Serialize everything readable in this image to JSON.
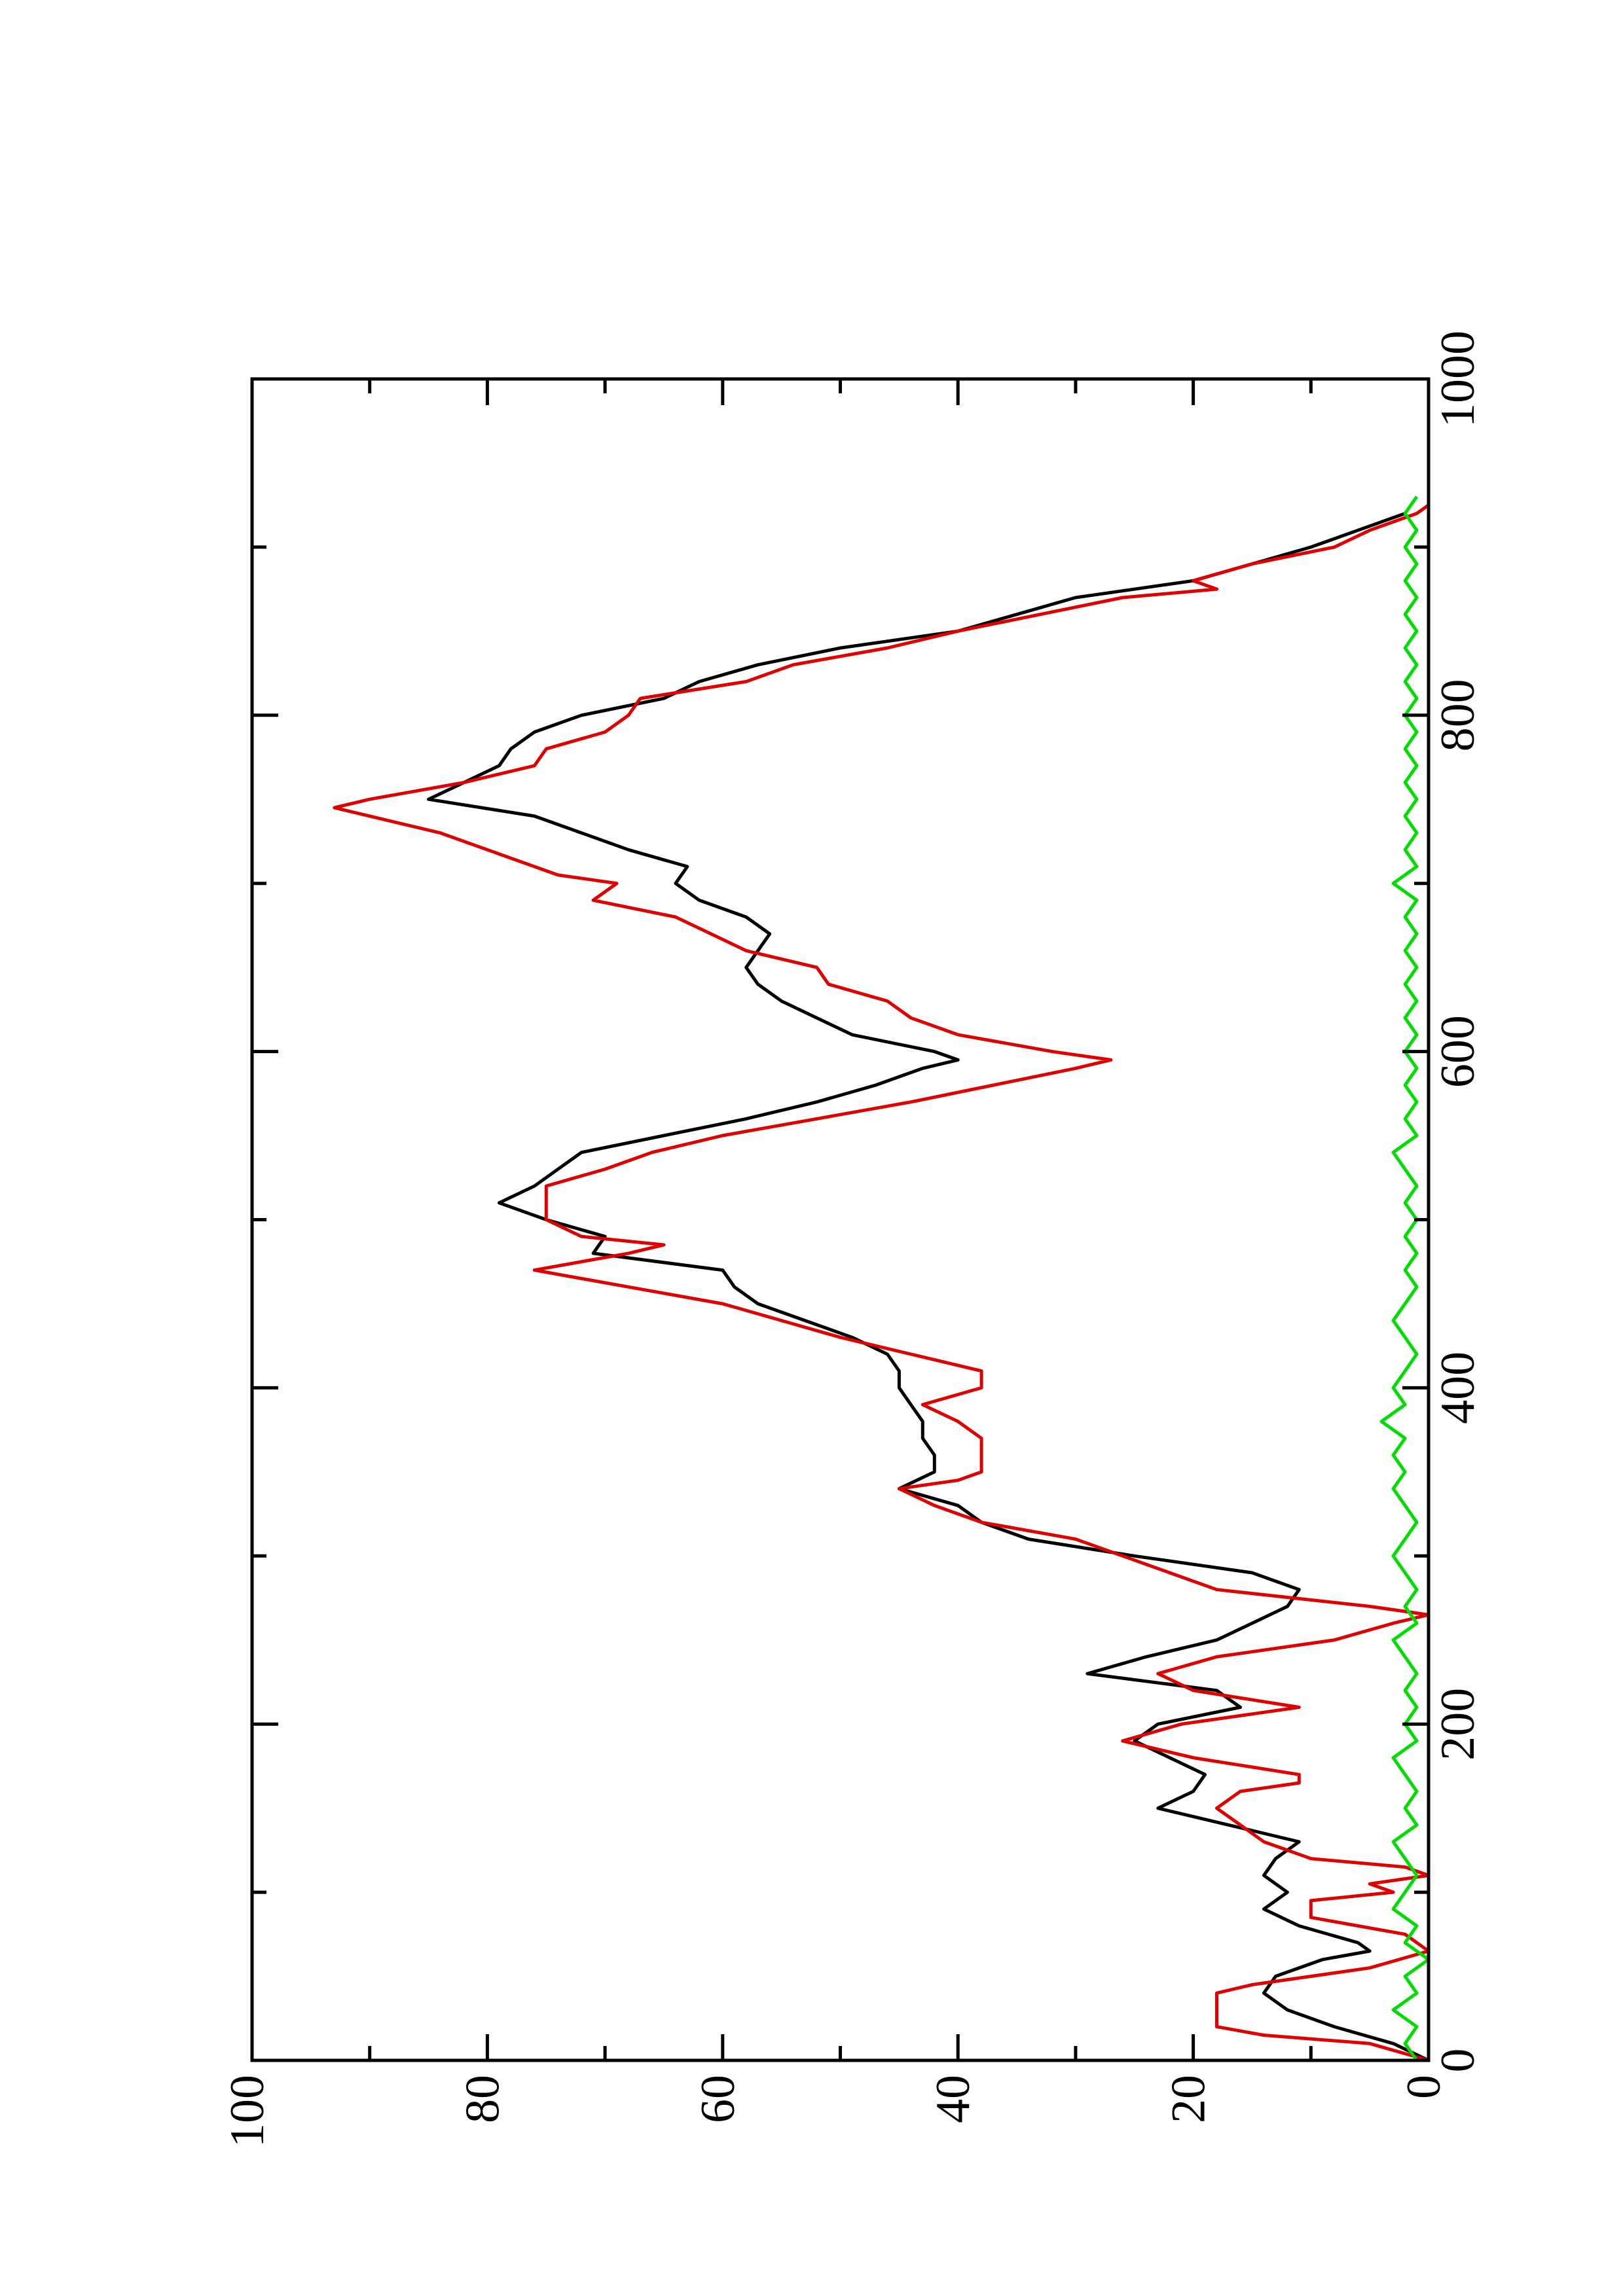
{
  "chart_data": {
    "type": "line",
    "xlim": [
      0,
      1000
    ],
    "xticks": [
      0,
      200,
      400,
      600,
      800,
      1000
    ],
    "xminor": [
      100,
      300,
      500,
      700,
      900
    ],
    "ylim": [
      0,
      100
    ],
    "yticks": [
      0,
      20,
      40,
      60,
      80,
      100
    ],
    "yminor": [
      10,
      30,
      50,
      70,
      90
    ],
    "series": [
      {
        "color": "#000000",
        "x": [
          0,
          10,
          20,
          30,
          40,
          50,
          60,
          65,
          70,
          80,
          90,
          100,
          110,
          120,
          130,
          140,
          150,
          160,
          170,
          180,
          190,
          200,
          210,
          220,
          230,
          240,
          250,
          260,
          270,
          280,
          290,
          300,
          310,
          320,
          330,
          340,
          350,
          360,
          370,
          380,
          390,
          400,
          410,
          420,
          430,
          440,
          450,
          460,
          470,
          480,
          490,
          500,
          510,
          520,
          530,
          540,
          550,
          560,
          570,
          580,
          590,
          595,
          600,
          610,
          620,
          630,
          640,
          650,
          660,
          670,
          680,
          690,
          700,
          710,
          720,
          730,
          740,
          750,
          760,
          770,
          780,
          790,
          800,
          810,
          820,
          830,
          840,
          850,
          860,
          870,
          880,
          890,
          900,
          910,
          920
        ],
        "values": [
          0,
          3,
          8,
          12,
          14,
          13,
          9,
          5,
          6,
          11,
          14,
          12,
          14,
          13,
          11,
          17,
          23,
          20,
          19,
          22,
          25,
          23,
          16,
          18,
          29,
          24,
          18,
          15,
          12,
          11,
          15,
          25,
          34,
          38,
          40,
          45,
          42,
          42,
          43,
          43,
          44,
          45,
          45,
          46,
          49,
          53,
          57,
          59,
          60,
          71,
          70,
          75,
          79,
          76,
          74,
          72,
          65,
          58,
          52,
          47,
          43,
          40,
          42,
          49,
          52,
          55,
          57,
          58,
          57,
          56,
          58,
          62,
          64,
          63,
          68,
          72,
          76,
          85,
          82,
          79,
          78,
          76,
          72,
          65,
          62,
          57,
          50,
          40,
          35,
          30,
          20,
          15,
          10,
          6,
          2
        ]
      },
      {
        "color": "#e00000",
        "x": [
          0,
          10,
          15,
          20,
          40,
          45,
          55,
          65,
          75,
          80,
          85,
          95,
          100,
          105,
          110,
          115,
          120,
          130,
          140,
          150,
          160,
          165,
          170,
          180,
          190,
          200,
          210,
          220,
          230,
          240,
          250,
          260,
          265,
          270,
          280,
          290,
          300,
          310,
          320,
          330,
          340,
          345,
          350,
          370,
          380,
          390,
          400,
          410,
          420,
          430,
          440,
          450,
          460,
          470,
          480,
          485,
          490,
          500,
          520,
          530,
          540,
          550,
          560,
          570,
          580,
          590,
          595,
          600,
          610,
          620,
          630,
          640,
          650,
          660,
          670,
          680,
          690,
          700,
          705,
          720,
          730,
          740,
          745,
          750,
          760,
          770,
          780,
          790,
          800,
          810,
          820,
          830,
          840,
          850,
          860,
          870,
          875,
          880,
          890,
          900,
          910,
          920,
          925
        ],
        "values": [
          0,
          5,
          14,
          18,
          18,
          15,
          5,
          0,
          2,
          6,
          10,
          10,
          3,
          5,
          0,
          2,
          10,
          14,
          16,
          18,
          16,
          11,
          11,
          20,
          26,
          21,
          11,
          20,
          23,
          18,
          8,
          3,
          0,
          5,
          18,
          22,
          26,
          30,
          38,
          42,
          45,
          40,
          38,
          38,
          40,
          43,
          38,
          38,
          44,
          50,
          55,
          60,
          68,
          76,
          68,
          65,
          72,
          75,
          75,
          70,
          66,
          60,
          52,
          44,
          37,
          30,
          27,
          32,
          40,
          44,
          46,
          51,
          52,
          58,
          61,
          64,
          71,
          69,
          74,
          80,
          84,
          90,
          93,
          90,
          82,
          76,
          75,
          70,
          68,
          67,
          58,
          54,
          46,
          40,
          33,
          26,
          18,
          20,
          15,
          8,
          5,
          1,
          0
        ]
      },
      {
        "color": "#00dd00",
        "x": [
          0,
          10,
          20,
          30,
          40,
          50,
          60,
          70,
          80,
          90,
          100,
          110,
          120,
          130,
          140,
          150,
          160,
          170,
          180,
          190,
          200,
          210,
          220,
          230,
          240,
          250,
          260,
          270,
          280,
          290,
          300,
          310,
          320,
          330,
          340,
          350,
          360,
          370,
          380,
          390,
          400,
          410,
          420,
          430,
          440,
          450,
          460,
          470,
          480,
          490,
          500,
          510,
          520,
          530,
          540,
          550,
          560,
          570,
          580,
          590,
          600,
          610,
          620,
          630,
          640,
          650,
          660,
          670,
          680,
          690,
          700,
          710,
          720,
          730,
          740,
          750,
          760,
          770,
          780,
          790,
          800,
          810,
          820,
          830,
          840,
          850,
          860,
          870,
          880,
          890,
          900,
          910,
          920,
          930
        ],
        "values": [
          1,
          2,
          1,
          3,
          1,
          2,
          0,
          2,
          1,
          3,
          2,
          1,
          2,
          3,
          1,
          2,
          1,
          2,
          3,
          1,
          2,
          1,
          2,
          1,
          2,
          3,
          1,
          2,
          1,
          2,
          3,
          2,
          1,
          2,
          3,
          2,
          3,
          2,
          4,
          2,
          3,
          2,
          1,
          2,
          3,
          2,
          1,
          2,
          1,
          2,
          1,
          2,
          1,
          2,
          3,
          1,
          2,
          1,
          2,
          1,
          2,
          1,
          2,
          1,
          2,
          1,
          2,
          1,
          2,
          1,
          3,
          1,
          2,
          1,
          2,
          1,
          2,
          1,
          2,
          1,
          2,
          1,
          2,
          1,
          2,
          1,
          2,
          1,
          2,
          1,
          2,
          1,
          2,
          1
        ]
      }
    ]
  }
}
